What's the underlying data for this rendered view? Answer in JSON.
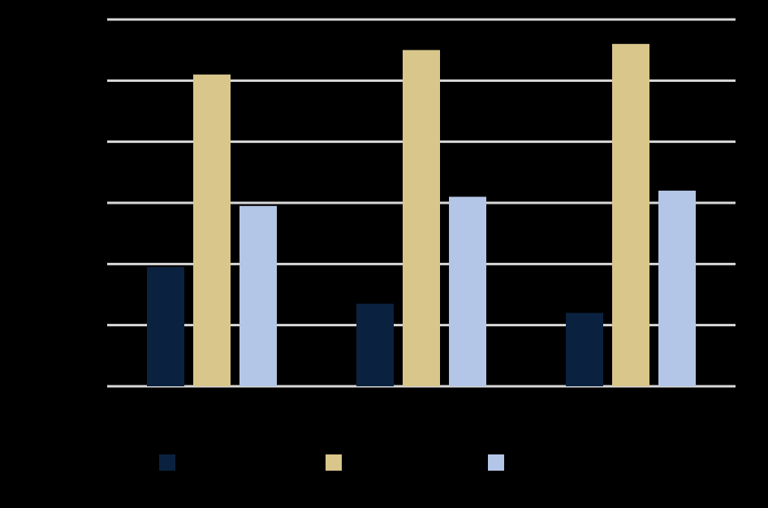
{
  "chart_data": {
    "type": "bar",
    "categories": [
      null,
      null,
      null
    ],
    "series": [
      {
        "color": "#0a2240",
        "values": [
          19.5,
          13.5,
          12
        ]
      },
      {
        "color": "#d8c68a",
        "values": [
          51,
          55,
          56
        ]
      },
      {
        "color": "#b4c6e7",
        "values": [
          29.5,
          31,
          32
        ]
      }
    ],
    "ylim": [
      0,
      60
    ],
    "yticks": [
      0,
      10,
      20,
      30,
      40,
      50,
      60
    ],
    "grid": true
  }
}
